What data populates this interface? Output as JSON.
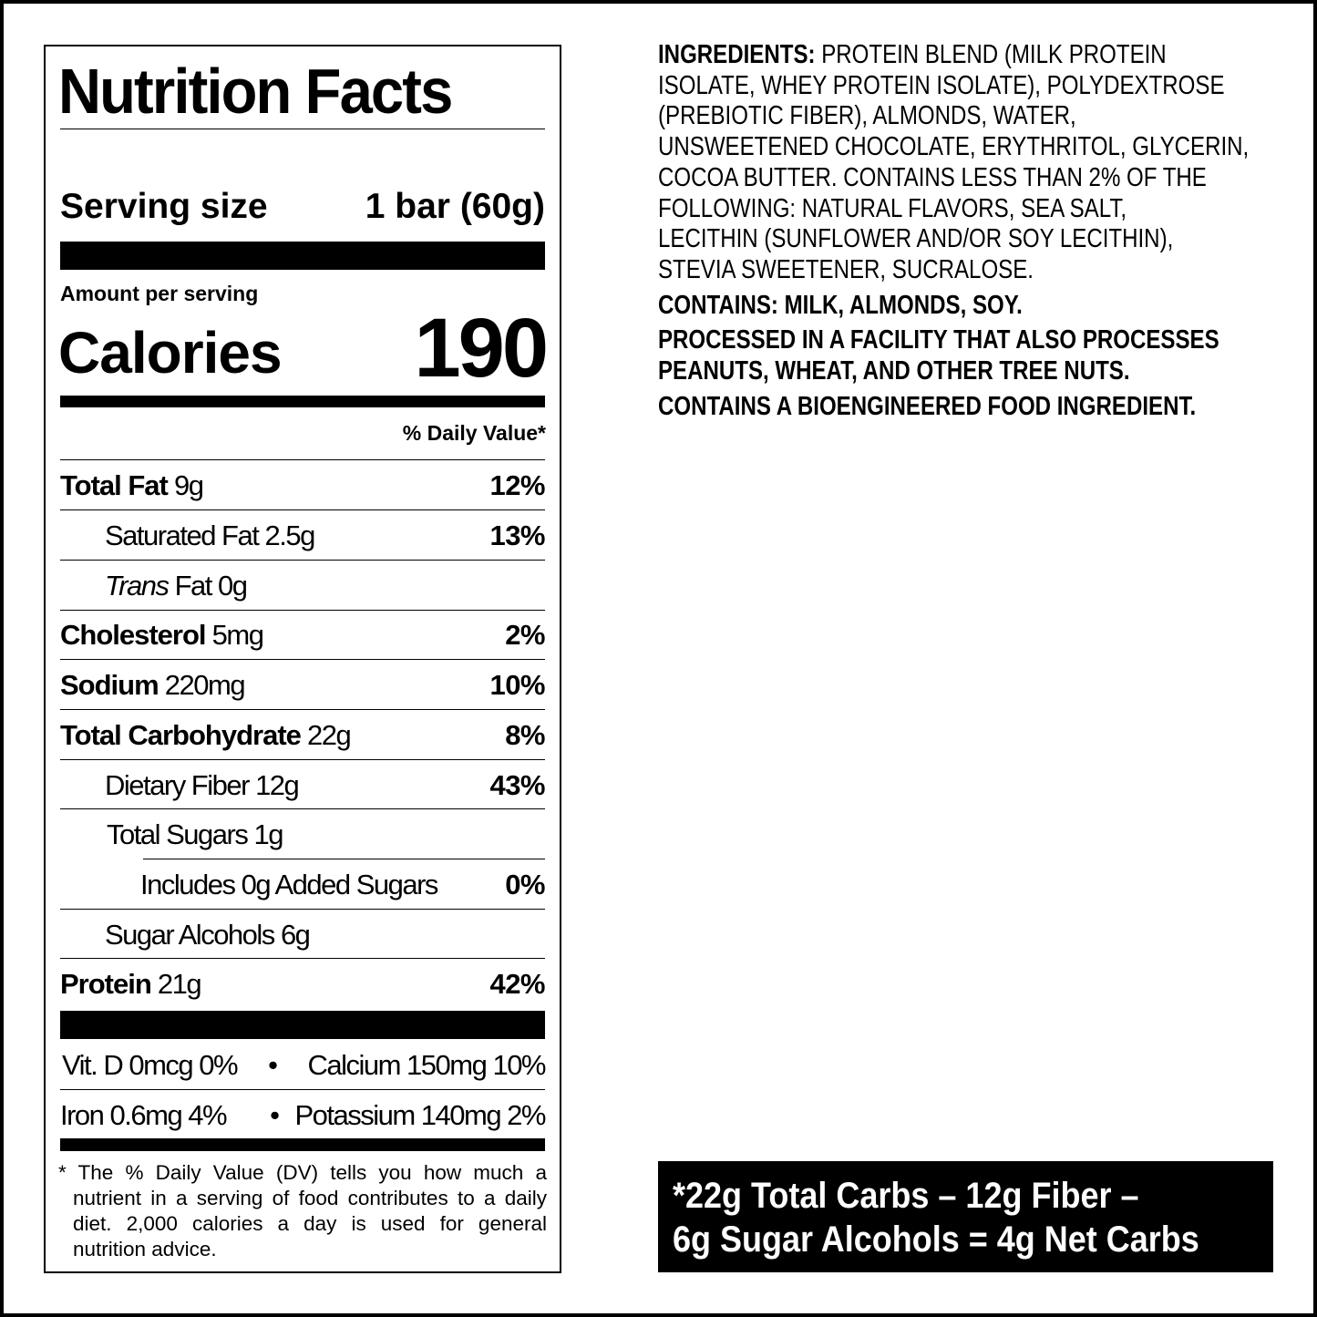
{
  "nutrition_facts": {
    "title": "Nutrition Facts",
    "serving_label": "Serving size",
    "serving_value": "1 bar (60g)",
    "amount_per_serving": "Amount per serving",
    "calories_label": "Calories",
    "calories_value": "190",
    "daily_value_header": "% Daily Value*",
    "nutrients": [
      {
        "name": "Total Fat",
        "amount": "9g",
        "dv": "12%"
      },
      {
        "name": "Saturated Fat",
        "amount": "2.5g",
        "dv": "13%"
      },
      {
        "name": "Trans",
        "name_rest": "Fat",
        "amount": "0g",
        "dv": ""
      },
      {
        "name": "Cholesterol",
        "amount": "5mg",
        "dv": "2%"
      },
      {
        "name": "Sodium",
        "amount": "220mg",
        "dv": "10%"
      },
      {
        "name": "Total Carbohydrate",
        "amount": "22g",
        "dv": "8%"
      },
      {
        "name": "Dietary Fiber",
        "amount": "12g",
        "dv": "43%"
      },
      {
        "name": "Total Sugars",
        "amount": "1g",
        "dv": ""
      },
      {
        "name": "Includes 0g Added Sugars",
        "amount": "",
        "dv": "0%"
      },
      {
        "name": "Sugar Alcohols",
        "amount": "6g",
        "dv": ""
      },
      {
        "name": "Protein",
        "amount": "21g",
        "dv": "42%"
      }
    ],
    "minerals": [
      {
        "left": "Vit. D 0mcg 0%",
        "right": "Calcium 150mg 10%"
      },
      {
        "left": "Iron 0.6mg 4%",
        "right": "Potassium 140mg 2%"
      }
    ],
    "bullet": "•",
    "footnote": "* The % Daily Value (DV) tells you how much a nutrient in a serving of food contributes to a daily diet. 2,000 calories a day is used for general nutrition advice."
  },
  "ingredients": {
    "label": "INGREDIENTS:",
    "lines": [
      "PROTEIN BLEND (MILK PROTEIN",
      "ISOLATE, WHEY PROTEIN ISOLATE), POLYDEXTROSE",
      "(PREBIOTIC FIBER), ALMONDS, WATER,",
      "UNSWEETENED CHOCOLATE, ERYTHRITOL, GLYCERIN,",
      "COCOA BUTTER. CONTAINS LESS THAN 2% OF THE",
      "FOLLOWING: NATURAL FLAVORS, SEA SALT,",
      "LECITHIN (SUNFLOWER AND/OR SOY LECITHIN),",
      "STEVIA SWEETENER, SUCRALOSE."
    ],
    "contains": "CONTAINS: MILK, ALMONDS, SOY.",
    "facility_lines": [
      "PROCESSED IN A FACILITY THAT ALSO PROCESSES",
      "PEANUTS, WHEAT, AND OTHER TREE NUTS."
    ],
    "bioengineered": "CONTAINS A BIOENGINEERED FOOD INGREDIENT."
  },
  "net_carbs": {
    "line1": "*22g Total Carbs – 12g Fiber –",
    "line2": "6g Sugar Alcohols = 4g Net Carbs",
    "background": "#000000",
    "text_color": "#ffffff"
  }
}
